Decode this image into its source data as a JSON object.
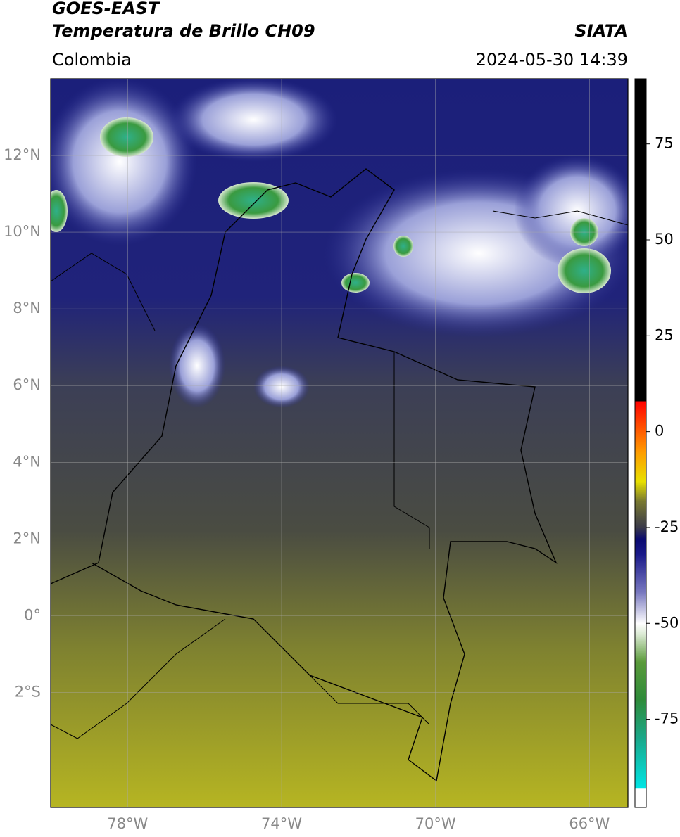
{
  "header": {
    "title": "GOES-EAST",
    "subtitle": "Temperatura de Brillo CH09",
    "source": "SIATA",
    "region": "Colombia",
    "datetime": "2024-05-30 14:39"
  },
  "map": {
    "xlim": [
      -80,
      -65
    ],
    "ylim": [
      -5,
      14
    ],
    "grid": true,
    "xticks": [
      {
        "value": -78,
        "label": "78°W"
      },
      {
        "value": -74,
        "label": "74°W"
      },
      {
        "value": -70,
        "label": "70°W"
      },
      {
        "value": -66,
        "label": "66°W"
      }
    ],
    "yticks": [
      {
        "value": -2,
        "label": "2°S"
      },
      {
        "value": 0,
        "label": "0°"
      },
      {
        "value": 2,
        "label": "2°N"
      },
      {
        "value": 4,
        "label": "4°N"
      },
      {
        "value": 6,
        "label": "6°N"
      },
      {
        "value": 8,
        "label": "8°N"
      },
      {
        "value": 10,
        "label": "10°N"
      },
      {
        "value": 12,
        "label": "12°N"
      }
    ]
  },
  "colorbar": {
    "lim": [
      -98,
      92
    ],
    "ticks": [
      -75,
      -50,
      -25,
      0,
      25,
      50,
      75
    ],
    "stops": [
      {
        "value": -98,
        "color": "#ffffff"
      },
      {
        "value": -93,
        "color": "#ffffff"
      },
      {
        "value": -93,
        "color": "#00e5e5"
      },
      {
        "value": -80,
        "color": "#1aa88a"
      },
      {
        "value": -70,
        "color": "#2e8b3a"
      },
      {
        "value": -60,
        "color": "#5a9a3a"
      },
      {
        "value": -53,
        "color": "#d8e8d0"
      },
      {
        "value": -50,
        "color": "#ffffff"
      },
      {
        "value": -42,
        "color": "#7a7ac0"
      },
      {
        "value": -32,
        "color": "#1a1a8a"
      },
      {
        "value": -28,
        "color": "#0a0a70"
      },
      {
        "value": -25,
        "color": "#3a3a4a"
      },
      {
        "value": -18,
        "color": "#7a7a30"
      },
      {
        "value": -13,
        "color": "#e8e000"
      },
      {
        "value": -5,
        "color": "#ff9900"
      },
      {
        "value": 8,
        "color": "#ff0000"
      },
      {
        "value": 8,
        "color": "#000000"
      },
      {
        "value": 92,
        "color": "#000000"
      }
    ]
  }
}
